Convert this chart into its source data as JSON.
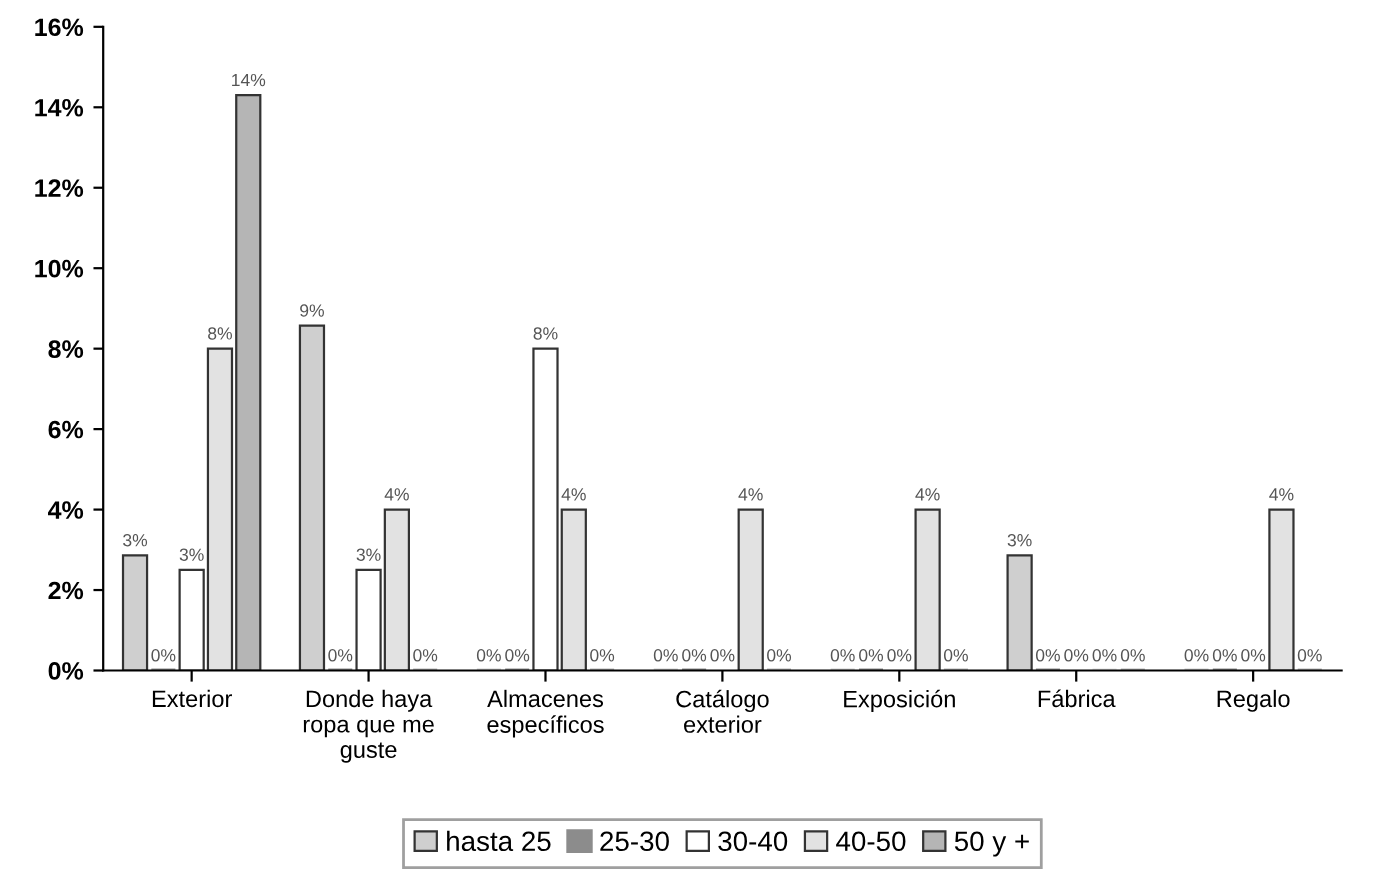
{
  "chart_data": {
    "type": "bar",
    "categories": [
      "Exterior",
      "Donde haya ropa que me guste",
      "Almacenes específicos",
      "Catálogo exterior",
      "Exposición",
      "Fábrica",
      "Regalo"
    ],
    "series": [
      {
        "name": "hasta 25",
        "color": "#cfcfcf",
        "values": [
          2.86,
          8.57,
          0,
          0,
          0,
          2.86,
          0
        ],
        "value_labels": [
          "3%",
          "9%",
          "0%",
          "0%",
          "0%",
          "3%",
          "0%"
        ]
      },
      {
        "name": "25-30",
        "color": "#8c8c8c",
        "values": [
          0,
          0,
          0,
          0,
          0,
          0,
          0
        ],
        "value_labels": [
          "0%",
          "0%",
          "0%",
          "0%",
          "0%",
          "0%",
          "0%"
        ]
      },
      {
        "name": "30-40",
        "color": "#ffffff",
        "values": [
          2.5,
          2.5,
          8,
          0,
          0,
          0,
          0
        ],
        "value_labels": [
          "3%",
          "3%",
          "8%",
          "0%",
          "0%",
          "0%",
          "0%"
        ]
      },
      {
        "name": "40-50",
        "color": "#e2e2e2",
        "values": [
          8,
          4,
          4,
          4,
          4,
          0,
          4
        ],
        "value_labels": [
          "8%",
          "4%",
          "4%",
          "4%",
          "4%",
          "0%",
          "4%"
        ]
      },
      {
        "name": "50 y +",
        "color": "#b5b5b5",
        "values": [
          14.3,
          0,
          0,
          0,
          0,
          0,
          0
        ],
        "value_labels": [
          "14%",
          "0%",
          "0%",
          "0%",
          "0%",
          "0%",
          "0%"
        ]
      }
    ],
    "ylim": [
      0,
      16
    ],
    "yticks": [
      {
        "value": 0,
        "label": "0%"
      },
      {
        "value": 2,
        "label": "2%"
      },
      {
        "value": 4,
        "label": "4%"
      },
      {
        "value": 6,
        "label": "6%"
      },
      {
        "value": 8,
        "label": "8%"
      },
      {
        "value": 10,
        "label": "10%"
      },
      {
        "value": 12,
        "label": "12%"
      },
      {
        "value": 14,
        "label": "14%"
      },
      {
        "value": 16,
        "label": "16%"
      }
    ],
    "grid": false,
    "legend": "bottom"
  }
}
